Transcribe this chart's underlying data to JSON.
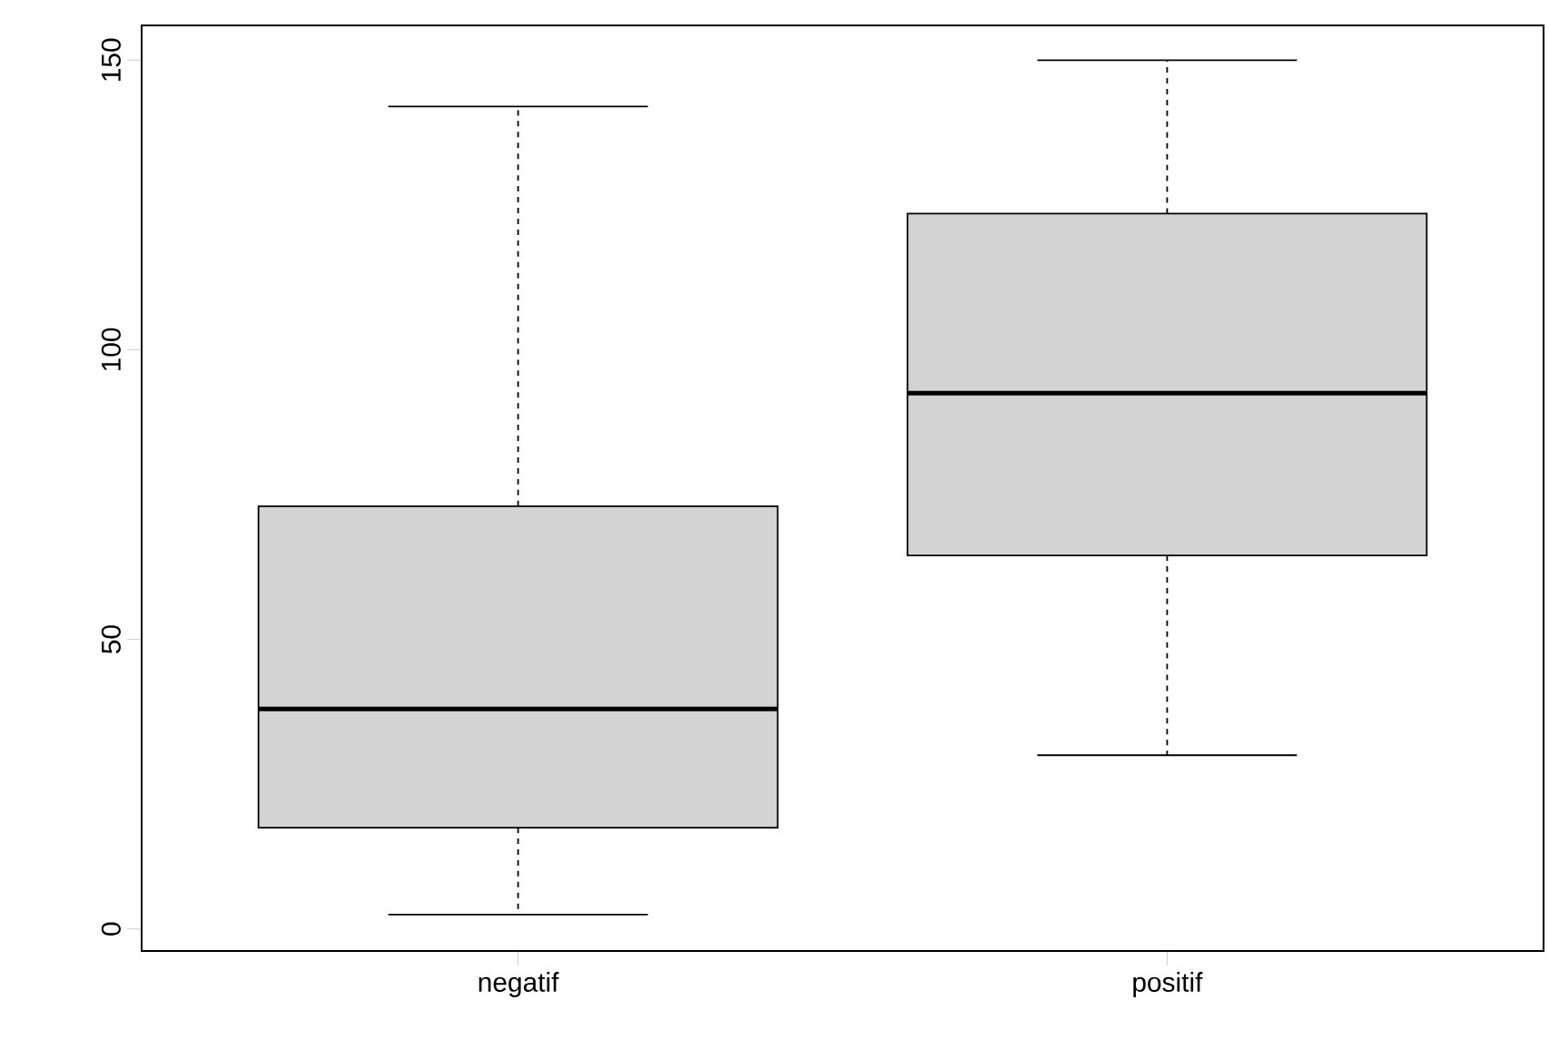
{
  "chart_data": {
    "type": "box",
    "categories": [
      "negatif",
      "positif"
    ],
    "color": "#d3d3d3",
    "boxes": [
      {
        "low": 2.5,
        "q1": 17.5,
        "median": 38,
        "q3": 73,
        "high": 142
      },
      {
        "low": 30,
        "q1": 64.5,
        "median": 92.5,
        "q3": 123.5,
        "high": 150
      }
    ],
    "ylim": [
      -3.8,
      156
    ],
    "yticks": [
      0,
      50,
      100,
      150
    ]
  }
}
